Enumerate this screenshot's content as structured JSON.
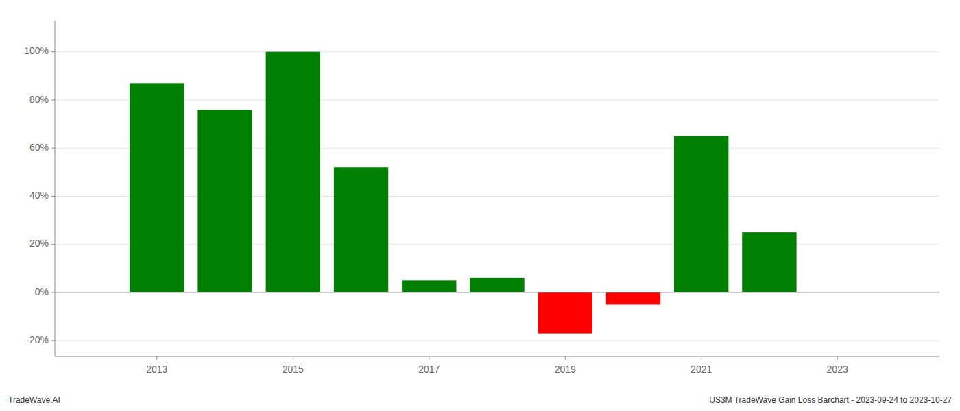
{
  "chart_data": {
    "type": "bar",
    "x": [
      2013,
      2014,
      2015,
      2016,
      2017,
      2018,
      2019,
      2020,
      2021,
      2022
    ],
    "values": [
      0.87,
      0.76,
      1.0,
      0.52,
      0.05,
      0.06,
      -0.17,
      -0.05,
      0.65,
      0.25
    ],
    "colors": [
      "#008000",
      "#008000",
      "#008000",
      "#008000",
      "#008000",
      "#008000",
      "#ff0000",
      "#ff0000",
      "#008000",
      "#008000"
    ],
    "xlim": [
      2011.5,
      2024.5
    ],
    "xticks": [
      2013,
      2015,
      2017,
      2019,
      2021,
      2023
    ],
    "ylim": [
      -0.265,
      1.13
    ],
    "yticks": [
      {
        "value": -0.2,
        "label": "-20%"
      },
      {
        "value": 0.0,
        "label": "0%"
      },
      {
        "value": 0.2,
        "label": "20%"
      },
      {
        "value": 0.4,
        "label": "40%"
      },
      {
        "value": 0.6,
        "label": "60%"
      },
      {
        "value": 0.8,
        "label": "80%"
      },
      {
        "value": 1.0,
        "label": "100%"
      }
    ],
    "grid": true,
    "annotations": [
      "TradeWave.AI",
      "US3M TradeWave Gain Loss Barchart - 2023-09-24 to 2023-10-27"
    ]
  }
}
